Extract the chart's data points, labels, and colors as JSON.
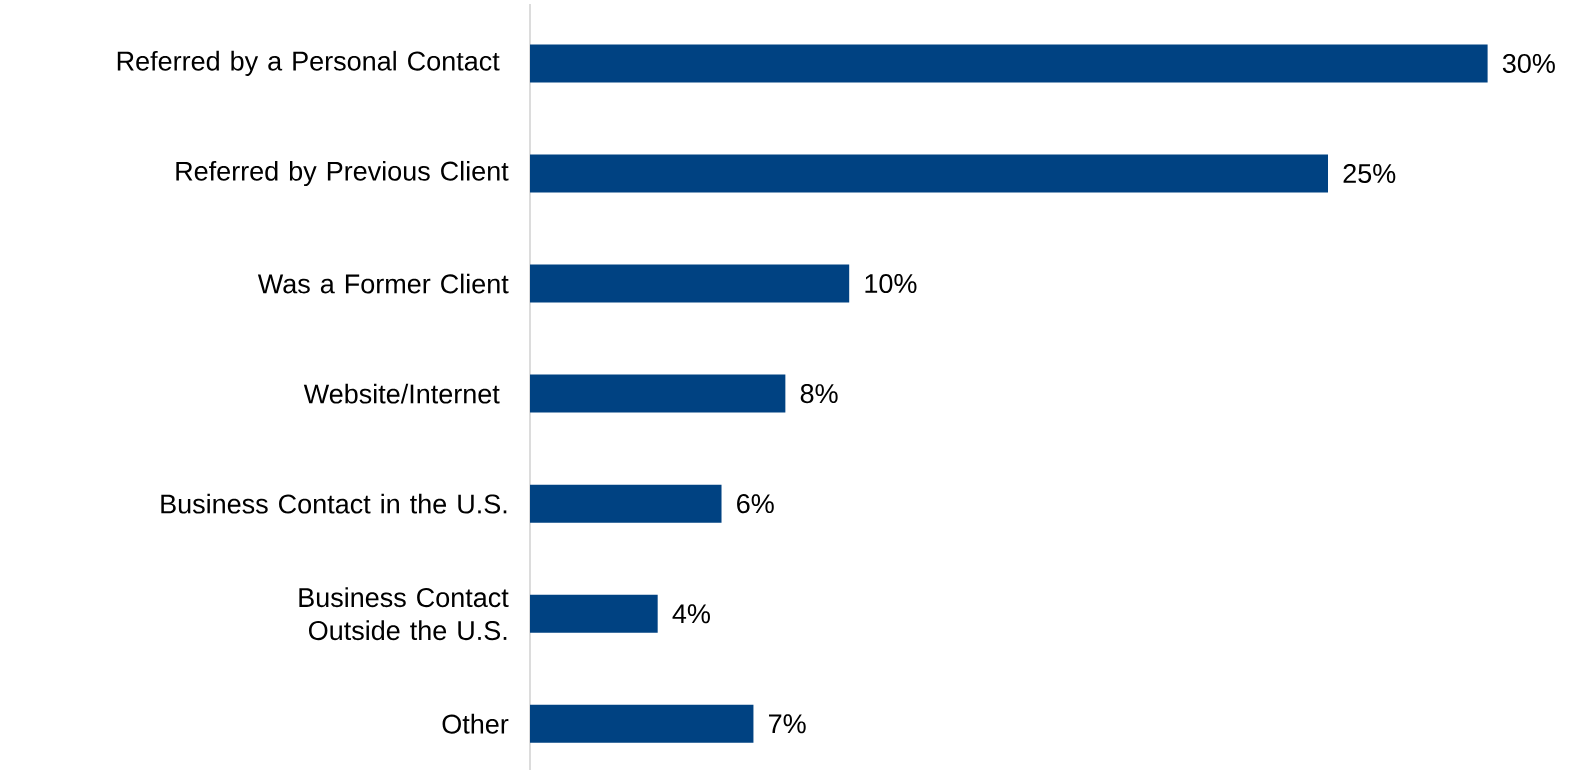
{
  "chart_data": {
    "type": "bar",
    "orientation": "horizontal",
    "categories": [
      "Referred by a Personal Contact ",
      "Referred by Previous Client",
      "Was a Former Client",
      "Website/Internet ",
      "Business Contact in the U.S.",
      "Business Contact Outside the U.S.",
      "Other"
    ],
    "values": [
      30,
      25,
      10,
      8,
      6,
      4,
      7
    ],
    "value_labels": [
      "30%",
      "25%",
      "10%",
      "8%",
      "6%",
      "4%",
      "7%"
    ],
    "color": "#004282"
  }
}
